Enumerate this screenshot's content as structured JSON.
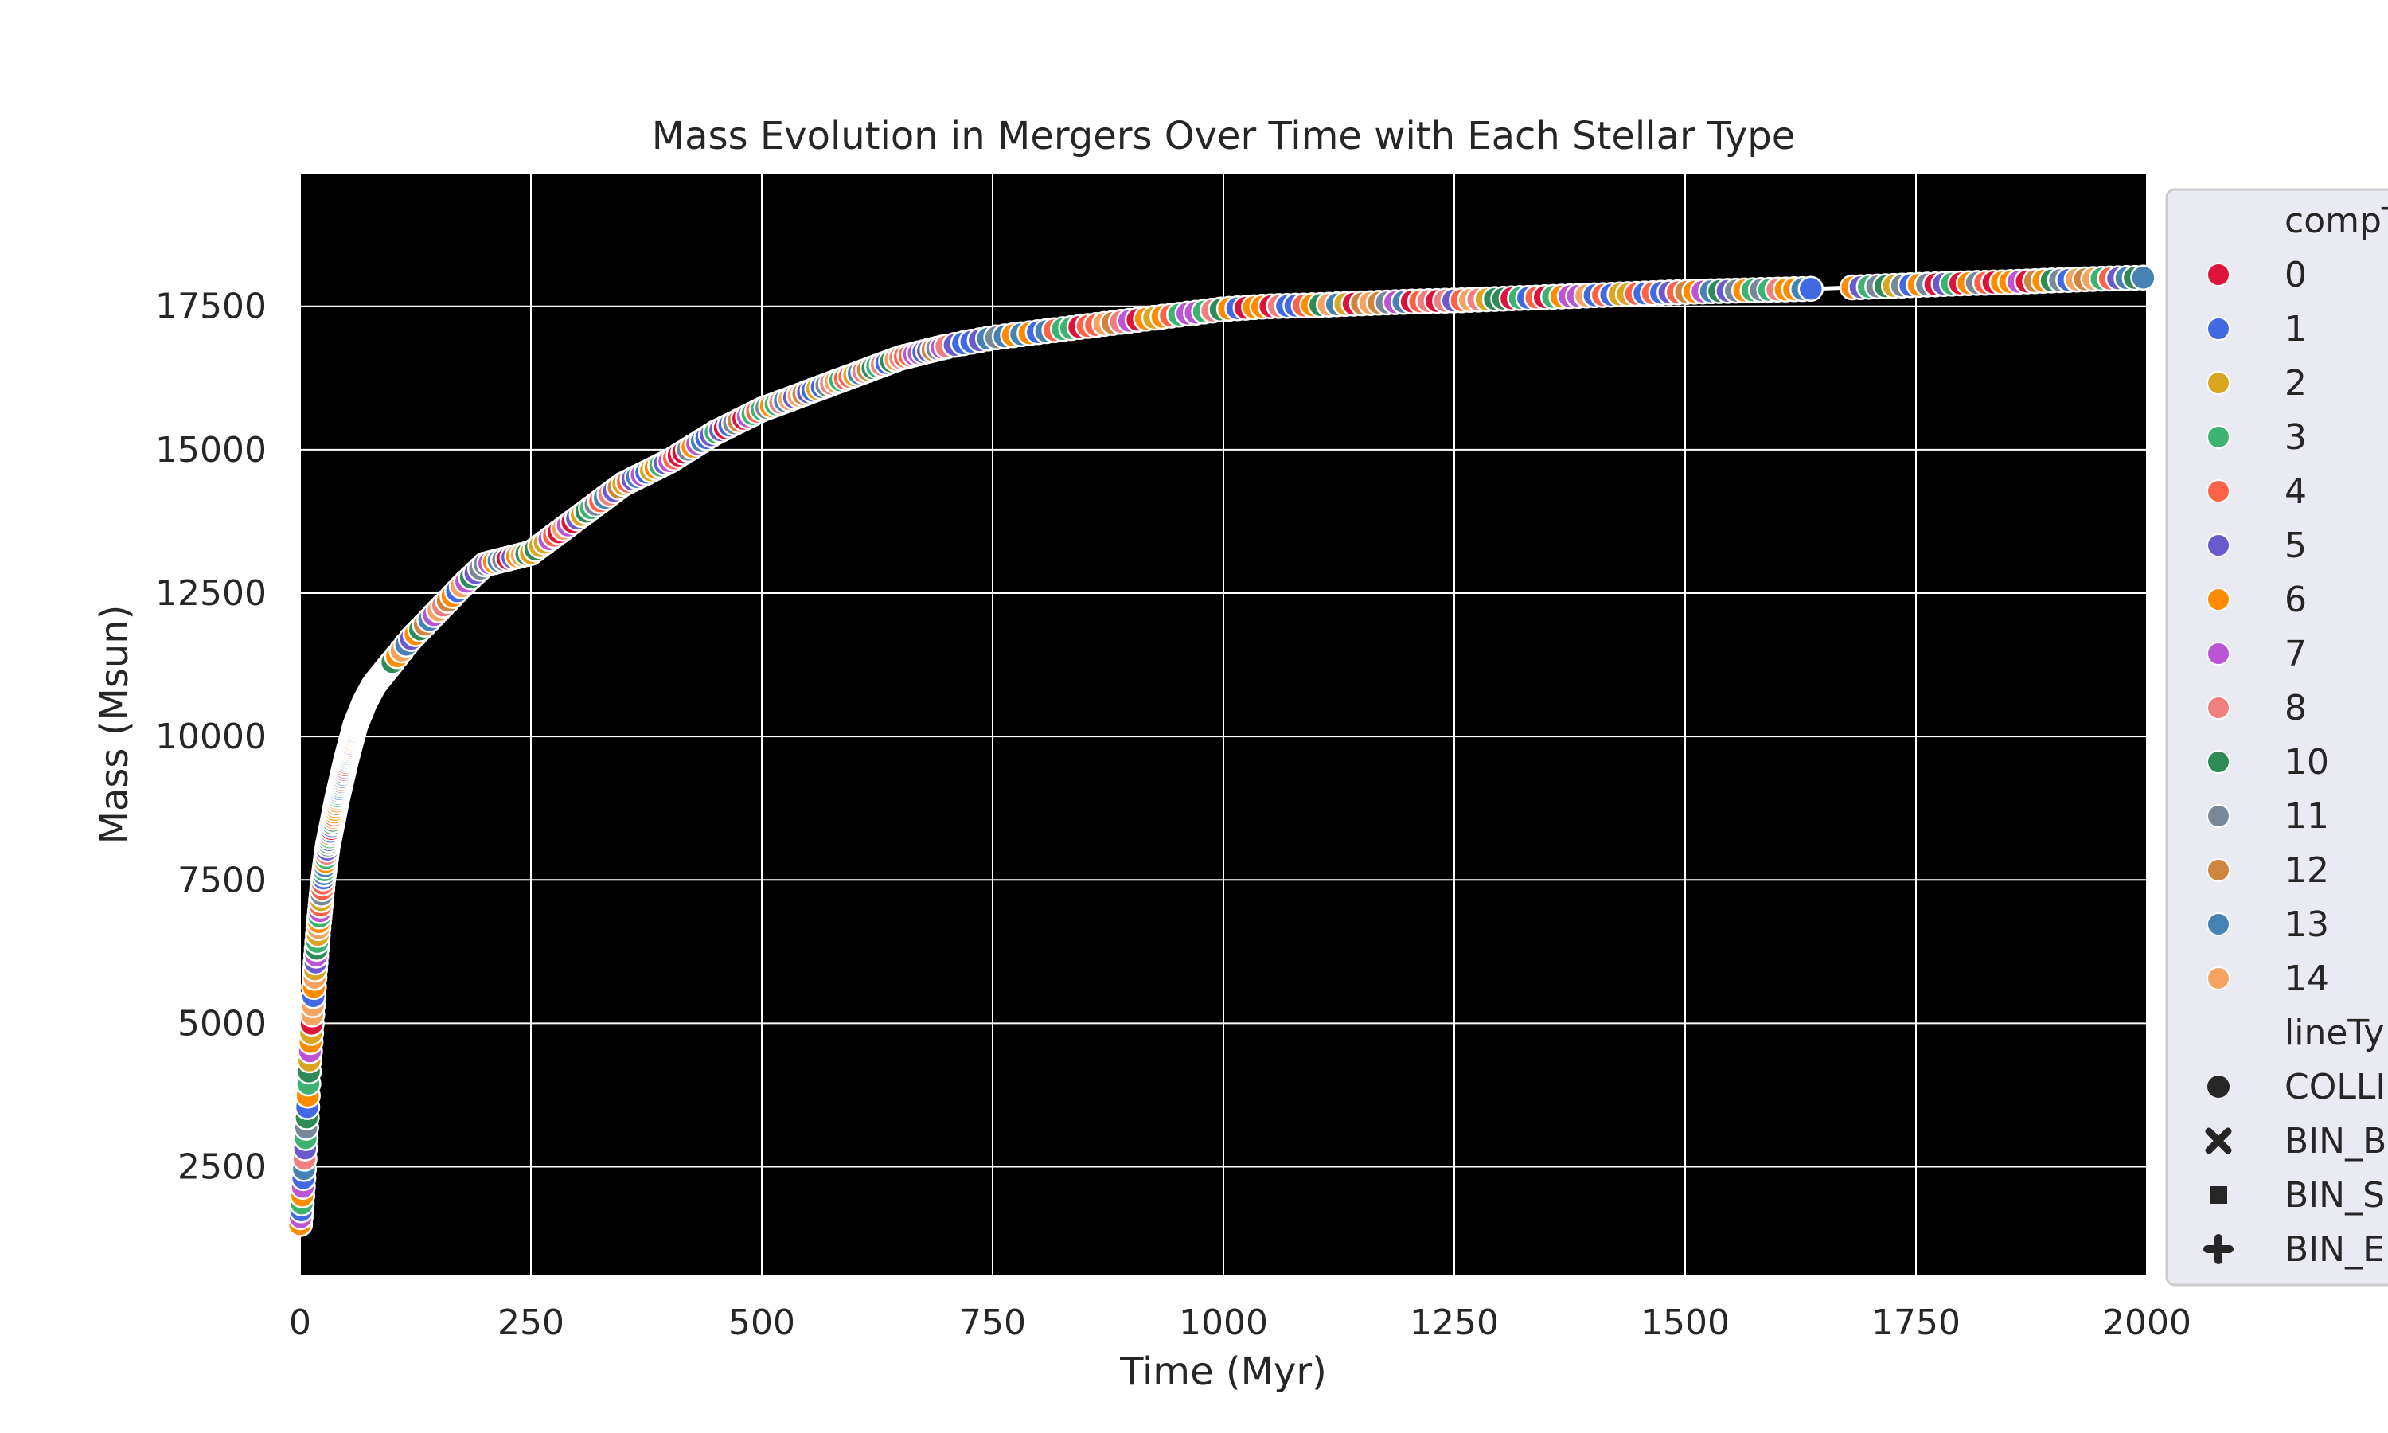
{
  "chart_data": {
    "type": "scatter",
    "title": "Mass Evolution in Mergers Over Time with Each Stellar Type",
    "xlabel": "Time (Myr)",
    "ylabel": "Mass (Msun)",
    "xlim": [
      0,
      2000
    ],
    "ylim": [
      620,
      19800
    ],
    "x_ticks": [
      0,
      250,
      500,
      750,
      1000,
      1250,
      1500,
      1750,
      2000
    ],
    "y_ticks": [
      2500,
      5000,
      7500,
      10000,
      12500,
      15000,
      17500
    ],
    "grid": true,
    "plot_background": "#000000",
    "legend_placement": "right, outside plot",
    "legend": {
      "hue_title": "compT",
      "hue_items": [
        {
          "label": "0",
          "color": "#dc143c"
        },
        {
          "label": "1",
          "color": "#4169e1"
        },
        {
          "label": "2",
          "color": "#daa520"
        },
        {
          "label": "3",
          "color": "#3cb371"
        },
        {
          "label": "4",
          "color": "#ff6347"
        },
        {
          "label": "5",
          "color": "#6a5acd"
        },
        {
          "label": "6",
          "color": "#ff8c00"
        },
        {
          "label": "7",
          "color": "#ba55d3"
        },
        {
          "label": "8",
          "color": "#f08080"
        },
        {
          "label": "10",
          "color": "#2e8b57"
        },
        {
          "label": "11",
          "color": "#778899"
        },
        {
          "label": "12",
          "color": "#cd853f"
        },
        {
          "label": "13",
          "color": "#4682b4"
        },
        {
          "label": "14",
          "color": "#f4a460"
        }
      ],
      "style_title": "lineTy",
      "style_items": [
        {
          "label": "COLLI",
          "marker": "circle"
        },
        {
          "label": "BIN_B",
          "marker": "x"
        },
        {
          "label": "BIN_S",
          "marker": "square"
        },
        {
          "label": "BIN_E",
          "marker": "plus"
        }
      ]
    },
    "series": [
      {
        "x": [
          0,
          2,
          4,
          6,
          8,
          10,
          13,
          16,
          20,
          25,
          30,
          35,
          40,
          50,
          60,
          70,
          80,
          90,
          100,
          120,
          150,
          180,
          200,
          250,
          300,
          350,
          400,
          450,
          500,
          550,
          600,
          650,
          700,
          750,
          800,
          850,
          900,
          950,
          1000,
          1050,
          1100,
          1150,
          1200,
          1250,
          1300,
          1350,
          1400,
          1450,
          1500,
          1550,
          1600,
          1650,
          1700,
          1750,
          1800,
          1850,
          1900,
          1950,
          2000
        ],
        "y": [
          1500,
          1900,
          2400,
          3000,
          3600,
          4300,
          5100,
          5900,
          6700,
          7500,
          8100,
          8500,
          8900,
          9600,
          10200,
          10600,
          10900,
          11100,
          11300,
          11700,
          12200,
          12700,
          13000,
          13200,
          13800,
          14400,
          14800,
          15300,
          15700,
          16000,
          16300,
          16600,
          16800,
          16950,
          17050,
          17150,
          17250,
          17350,
          17450,
          17500,
          17520,
          17550,
          17580,
          17600,
          17630,
          17660,
          17690,
          17720,
          17750,
          17770,
          17790,
          17810,
          17840,
          17870,
          17900,
          17920,
          17950,
          17980,
          18000
        ]
      }
    ]
  }
}
